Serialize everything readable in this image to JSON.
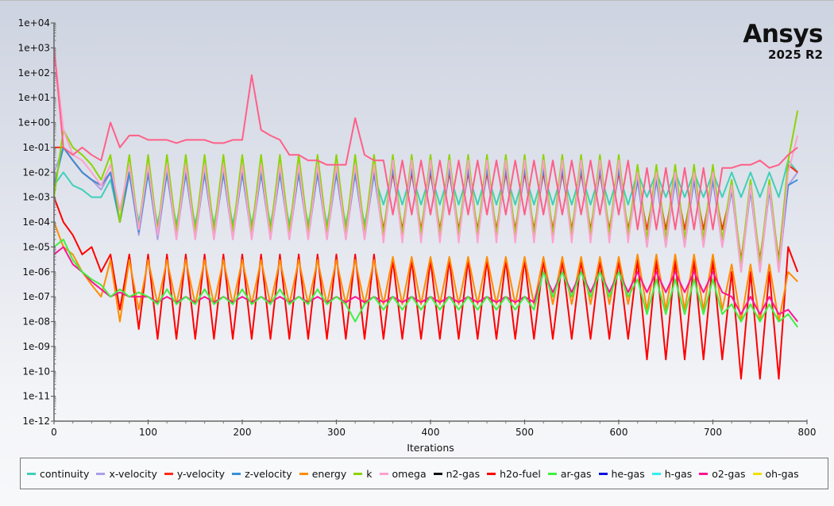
{
  "logo": {
    "name": "Ansys",
    "version": "2025 R2"
  },
  "chart_data": {
    "type": "line",
    "title": "",
    "xlabel": "Iterations",
    "ylabel": "",
    "xlim": [
      0,
      800
    ],
    "ylim": [
      1e-12,
      10000.0
    ],
    "yscale": "log",
    "grid": false,
    "legend_position": "bottom",
    "xticks": [
      "0",
      "100",
      "200",
      "300",
      "400",
      "500",
      "600",
      "700",
      "800"
    ],
    "yticks": [
      "1e+04",
      "1e+03",
      "1e+02",
      "1e+01",
      "1e+00",
      "1e-01",
      "1e-02",
      "1e-03",
      "1e-04",
      "1e-05",
      "1e-06",
      "1e-07",
      "1e-08",
      "1e-09",
      "1e-10",
      "1e-11",
      "1e-12"
    ],
    "legend": [
      {
        "name": "continuity",
        "color": "#3fd0b8"
      },
      {
        "name": "x-velocity",
        "color": "#aa9ee6"
      },
      {
        "name": "y-velocity",
        "color": "#ff2a1a"
      },
      {
        "name": "z-velocity",
        "color": "#3a8fd8"
      },
      {
        "name": "energy",
        "color": "#ff8c00"
      },
      {
        "name": "k",
        "color": "#8cd400"
      },
      {
        "name": "omega",
        "color": "#ffa0cc"
      },
      {
        "name": "n2-gas",
        "color": "#111111"
      },
      {
        "name": "h2o-fuel",
        "color": "#ff0000"
      },
      {
        "name": "ar-gas",
        "color": "#3ff03f"
      },
      {
        "name": "he-gas",
        "color": "#1010e0"
      },
      {
        "name": "h-gas",
        "color": "#30f0f0"
      },
      {
        "name": "o2-gas",
        "color": "#ff1493"
      },
      {
        "name": "oh-gas",
        "color": "#f0e000"
      }
    ],
    "x": [
      0,
      10,
      20,
      30,
      40,
      50,
      60,
      70,
      80,
      90,
      100,
      110,
      120,
      130,
      140,
      150,
      160,
      170,
      180,
      190,
      200,
      210,
      220,
      230,
      240,
      250,
      260,
      270,
      280,
      290,
      300,
      310,
      320,
      330,
      340,
      350,
      360,
      370,
      380,
      390,
      400,
      410,
      420,
      430,
      440,
      450,
      460,
      470,
      480,
      490,
      500,
      510,
      520,
      530,
      540,
      550,
      560,
      570,
      580,
      590,
      600,
      610,
      620,
      630,
      640,
      650,
      660,
      670,
      680,
      690,
      700,
      710,
      720,
      730,
      740,
      750,
      760,
      770,
      780,
      790
    ],
    "series": [
      {
        "name": "continuity",
        "color": "#3fd0b8",
        "values": [
          0.003,
          0.01,
          0.003,
          0.002,
          0.001,
          0.001,
          0.005,
          0.0001,
          0.008,
          0.0001,
          0.008,
          8e-05,
          0.008,
          8e-05,
          0.008,
          8e-05,
          0.008,
          8e-05,
          0.008,
          8e-05,
          0.008,
          8e-05,
          0.008,
          8e-05,
          0.008,
          8e-05,
          0.008,
          8e-05,
          0.008,
          8e-05,
          0.008,
          8e-05,
          0.008,
          8e-05,
          0.008,
          0.0005,
          0.01,
          0.0005,
          0.01,
          0.0005,
          0.01,
          0.0005,
          0.01,
          0.0005,
          0.01,
          0.0005,
          0.01,
          0.0005,
          0.01,
          0.0005,
          0.01,
          0.0005,
          0.01,
          0.0005,
          0.01,
          0.0005,
          0.01,
          0.0005,
          0.01,
          0.0005,
          0.01,
          0.0005,
          0.01,
          0.001,
          0.01,
          0.001,
          0.01,
          0.001,
          0.01,
          0.001,
          0.01,
          0.001,
          0.01,
          0.001,
          0.01,
          0.001,
          0.01,
          0.001,
          0.03,
          0.01
        ]
      },
      {
        "name": "x-velocity",
        "color": "#aa9ee6",
        "values": [
          0.01,
          0.1,
          0.03,
          0.01,
          0.005,
          0.002,
          0.01,
          0.0001,
          0.01,
          3e-05,
          0.01,
          2e-05,
          0.01,
          2e-05,
          0.01,
          2e-05,
          0.01,
          2e-05,
          0.01,
          2e-05,
          0.01,
          2e-05,
          0.01,
          2e-05,
          0.01,
          2e-05,
          0.01,
          2e-05,
          0.01,
          2e-05,
          0.01,
          2e-05,
          0.01,
          2e-05,
          0.01,
          2e-05,
          0.015,
          2e-05,
          0.015,
          2e-05,
          0.015,
          2e-05,
          0.015,
          2e-05,
          0.015,
          2e-05,
          0.015,
          2e-05,
          0.015,
          2e-05,
          0.015,
          2e-05,
          0.015,
          2e-05,
          0.015,
          2e-05,
          0.015,
          2e-05,
          0.015,
          2e-05,
          0.015,
          2e-05,
          0.005,
          1e-05,
          0.005,
          1e-05,
          0.005,
          1e-05,
          0.005,
          1e-05,
          0.005,
          1e-05,
          0.002,
          1e-06,
          0.002,
          1e-06,
          0.002,
          1e-06,
          0.003,
          0.01
        ]
      },
      {
        "name": "y-velocity",
        "color": "#ff2a1a",
        "values": [
          0.1,
          0.1,
          0.03,
          0.01,
          0.005,
          0.003,
          0.01,
          0.0001,
          0.01,
          5e-05,
          0.01,
          5e-05,
          0.01,
          5e-05,
          0.01,
          5e-05,
          0.01,
          5e-05,
          0.01,
          5e-05,
          0.01,
          5e-05,
          0.01,
          5e-05,
          0.01,
          5e-05,
          0.01,
          5e-05,
          0.01,
          5e-05,
          0.01,
          5e-05,
          0.01,
          5e-05,
          0.01,
          5e-05,
          0.01,
          5e-05,
          0.01,
          5e-05,
          0.01,
          5e-05,
          0.01,
          5e-05,
          0.01,
          5e-05,
          0.01,
          5e-05,
          0.01,
          5e-05,
          0.01,
          5e-05,
          0.01,
          5e-05,
          0.01,
          5e-05,
          0.01,
          5e-05,
          0.01,
          5e-05,
          0.01,
          5e-05,
          0.005,
          5e-05,
          0.005,
          5e-05,
          0.005,
          5e-05,
          0.005,
          5e-05,
          0.005,
          5e-05,
          0.002,
          3e-06,
          0.002,
          3e-06,
          0.002,
          3e-06,
          0.02,
          0.01
        ]
      },
      {
        "name": "z-velocity",
        "color": "#3a8fd8",
        "values": [
          0.003,
          0.1,
          0.03,
          0.01,
          0.005,
          0.003,
          0.01,
          0.0001,
          0.01,
          4e-05,
          0.01,
          3e-05,
          0.01,
          3e-05,
          0.01,
          3e-05,
          0.01,
          3e-05,
          0.01,
          3e-05,
          0.01,
          3e-05,
          0.01,
          3e-05,
          0.01,
          3e-05,
          0.01,
          3e-05,
          0.01,
          3e-05,
          0.01,
          3e-05,
          0.01,
          3e-05,
          0.01,
          3e-05,
          0.015,
          3e-05,
          0.015,
          3e-05,
          0.015,
          3e-05,
          0.015,
          3e-05,
          0.015,
          3e-05,
          0.015,
          3e-05,
          0.015,
          3e-05,
          0.015,
          3e-05,
          0.015,
          3e-05,
          0.015,
          3e-05,
          0.015,
          3e-05,
          0.015,
          3e-05,
          0.015,
          3e-05,
          0.005,
          2e-05,
          0.005,
          2e-05,
          0.005,
          2e-05,
          0.005,
          2e-05,
          0.005,
          2e-05,
          0.002,
          2e-06,
          0.002,
          2e-06,
          0.002,
          2e-06,
          0.003,
          0.005
        ]
      },
      {
        "name": "k",
        "color": "#8cd400",
        "values": [
          0.001,
          0.5,
          0.1,
          0.05,
          0.02,
          0.005,
          0.05,
          0.0001,
          0.05,
          5e-05,
          0.05,
          4e-05,
          0.05,
          4e-05,
          0.05,
          4e-05,
          0.05,
          4e-05,
          0.05,
          4e-05,
          0.05,
          4e-05,
          0.05,
          4e-05,
          0.05,
          4e-05,
          0.05,
          4e-05,
          0.05,
          4e-05,
          0.05,
          4e-05,
          0.05,
          4e-05,
          0.05,
          3e-05,
          0.05,
          3e-05,
          0.05,
          3e-05,
          0.05,
          3e-05,
          0.05,
          3e-05,
          0.05,
          3e-05,
          0.05,
          3e-05,
          0.05,
          3e-05,
          0.05,
          3e-05,
          0.05,
          3e-05,
          0.05,
          3e-05,
          0.05,
          3e-05,
          0.05,
          3e-05,
          0.05,
          3e-05,
          0.02,
          2e-05,
          0.02,
          2e-05,
          0.02,
          2e-05,
          0.02,
          2e-05,
          0.02,
          2e-05,
          0.005,
          2e-06,
          0.005,
          2e-06,
          0.005,
          2e-06,
          0.03,
          3.0
        ]
      },
      {
        "name": "omega",
        "color": "#ffa0cc",
        "values": [
          1000.0,
          0.5,
          0.05,
          0.03,
          0.01,
          0.003,
          0.02,
          0.0003,
          0.02,
          5e-05,
          0.02,
          3e-05,
          0.02,
          2e-05,
          0.02,
          2e-05,
          0.02,
          2e-05,
          0.02,
          2e-05,
          0.02,
          2e-05,
          0.02,
          2e-05,
          0.02,
          2e-05,
          0.02,
          2e-05,
          0.02,
          2e-05,
          0.02,
          2e-05,
          0.02,
          2e-05,
          0.02,
          1.5e-05,
          0.03,
          1.5e-05,
          0.03,
          1.5e-05,
          0.03,
          1.5e-05,
          0.03,
          1.5e-05,
          0.03,
          1.5e-05,
          0.03,
          1.5e-05,
          0.03,
          1.5e-05,
          0.03,
          1.5e-05,
          0.03,
          1.5e-05,
          0.03,
          1.5e-05,
          0.03,
          1.5e-05,
          0.03,
          1.5e-05,
          0.03,
          1.5e-05,
          0.01,
          1e-05,
          0.01,
          1e-05,
          0.01,
          1e-05,
          0.01,
          1e-05,
          0.01,
          1e-05,
          0.003,
          1e-06,
          0.003,
          1e-06,
          0.003,
          1e-06,
          0.01,
          0.3
        ]
      },
      {
        "name": "h2o-fuel",
        "color": "#ff0000",
        "values": [
          0.001,
          0.0001,
          3e-05,
          5e-06,
          1e-05,
          1e-06,
          5e-06,
          3e-08,
          5e-06,
          5e-09,
          5e-06,
          2e-09,
          5e-06,
          2e-09,
          5e-06,
          2e-09,
          5e-06,
          2e-09,
          5e-06,
          2e-09,
          5e-06,
          2e-09,
          5e-06,
          2e-09,
          5e-06,
          2e-09,
          5e-06,
          2e-09,
          5e-06,
          2e-09,
          5e-06,
          2e-09,
          5e-06,
          2e-09,
          5e-06,
          2e-09,
          3e-06,
          2e-09,
          3e-06,
          2e-09,
          3e-06,
          2e-09,
          3e-06,
          2e-09,
          3e-06,
          2e-09,
          3e-06,
          2e-09,
          3e-06,
          2e-09,
          3e-06,
          2e-09,
          3e-06,
          2e-09,
          3e-06,
          2e-09,
          3e-06,
          2e-09,
          3e-06,
          2e-09,
          3e-06,
          2e-09,
          3e-06,
          3e-10,
          3e-06,
          3e-10,
          3e-06,
          3e-10,
          3e-06,
          3e-10,
          3e-06,
          3e-10,
          1e-06,
          5e-11,
          1e-06,
          5e-11,
          1e-06,
          5e-11,
          1e-05,
          1e-06
        ]
      },
      {
        "name": "energy",
        "color": "#ff8c00",
        "values": [
          0.0001,
          1e-05,
          5e-06,
          1e-06,
          3e-07,
          1e-07,
          3e-06,
          1e-08,
          3e-06,
          3e-08,
          3e-06,
          5e-08,
          3e-06,
          5e-08,
          3e-06,
          5e-08,
          3e-06,
          5e-08,
          3e-06,
          5e-08,
          3e-06,
          5e-08,
          3e-06,
          5e-08,
          3e-06,
          5e-08,
          3e-06,
          5e-08,
          3e-06,
          5e-08,
          3e-06,
          5e-08,
          3e-06,
          5e-08,
          3e-06,
          5e-08,
          4e-06,
          5e-08,
          4e-06,
          5e-08,
          4e-06,
          5e-08,
          4e-06,
          5e-08,
          4e-06,
          5e-08,
          4e-06,
          5e-08,
          4e-06,
          5e-08,
          4e-06,
          5e-08,
          4e-06,
          5e-08,
          4e-06,
          5e-08,
          4e-06,
          5e-08,
          4e-06,
          5e-08,
          4e-06,
          5e-08,
          5e-06,
          3e-08,
          5e-06,
          3e-08,
          5e-06,
          3e-08,
          5e-06,
          3e-08,
          5e-06,
          3e-08,
          2e-06,
          1e-08,
          2e-06,
          1e-08,
          2e-06,
          1e-08,
          1e-06,
          4e-07
        ]
      },
      {
        "name": "o2-gas",
        "color": "#ff1493",
        "values": [
          5e-06,
          1e-05,
          2e-06,
          1e-06,
          4e-07,
          2e-07,
          1e-07,
          1.5e-07,
          1e-07,
          1e-07,
          1e-07,
          6e-08,
          1e-07,
          6e-08,
          1e-07,
          6e-08,
          1e-07,
          6e-08,
          1e-07,
          6e-08,
          1e-07,
          6e-08,
          1e-07,
          6e-08,
          1e-07,
          6e-08,
          1e-07,
          6e-08,
          1e-07,
          6e-08,
          1e-07,
          6e-08,
          1e-07,
          6e-08,
          1e-07,
          6e-08,
          1e-07,
          6e-08,
          1e-07,
          6e-08,
          1e-07,
          6e-08,
          1e-07,
          6e-08,
          1e-07,
          6e-08,
          1e-07,
          6e-08,
          1e-07,
          6e-08,
          1e-07,
          6e-08,
          1e-06,
          1.5e-07,
          1e-06,
          1.5e-07,
          1e-06,
          1.5e-07,
          1e-06,
          1.5e-07,
          1e-06,
          1.5e-07,
          1e-06,
          1.5e-07,
          1e-06,
          1.5e-07,
          1e-06,
          1.5e-07,
          1e-06,
          1.5e-07,
          1e-06,
          1.5e-07,
          1e-07,
          2e-08,
          1e-07,
          2e-08,
          1e-07,
          2e-08,
          3e-08,
          1e-08
        ]
      },
      {
        "name": "ar-gas",
        "color": "#3ff03f",
        "values": [
          1e-05,
          2e-05,
          3e-06,
          1e-06,
          5e-07,
          3e-07,
          1e-07,
          2e-07,
          1e-07,
          1.5e-07,
          1e-07,
          5e-08,
          2e-07,
          5e-08,
          1e-07,
          5e-08,
          2e-07,
          5e-08,
          1e-07,
          5e-08,
          2e-07,
          5e-08,
          1e-07,
          5e-08,
          2e-07,
          5e-08,
          1e-07,
          5e-08,
          2e-07,
          5e-08,
          1e-07,
          5e-08,
          1e-08,
          5e-08,
          1e-07,
          3e-08,
          1e-07,
          3e-08,
          1e-07,
          3e-08,
          1e-07,
          3e-08,
          1e-07,
          3e-08,
          1e-07,
          3e-08,
          1e-07,
          3e-08,
          1e-07,
          3e-08,
          1e-07,
          3e-08,
          1e-06,
          1e-07,
          1e-06,
          1e-07,
          1e-06,
          1e-07,
          1e-06,
          1e-07,
          1e-06,
          1e-07,
          5e-07,
          2e-08,
          5e-07,
          2e-08,
          5e-07,
          2e-08,
          5e-07,
          2e-08,
          5e-07,
          2e-08,
          5e-08,
          1e-08,
          5e-08,
          1e-08,
          5e-08,
          1e-08,
          2e-08,
          6e-09
        ]
      },
      {
        "color": "#ff6088",
        "values": [
          1000.0,
          0.1,
          0.05,
          0.1,
          0.05,
          0.03,
          1.0,
          0.1,
          0.3,
          0.3,
          0.2,
          0.2,
          0.2,
          0.15,
          0.2,
          0.2,
          0.2,
          0.15,
          0.15,
          0.2,
          0.2,
          80.0,
          0.5,
          0.3,
          0.2,
          0.05,
          0.05,
          0.03,
          0.03,
          0.02,
          0.02,
          0.02,
          1.5,
          0.05,
          0.03,
          0.03,
          0.0002,
          0.03,
          0.0002,
          0.03,
          0.0002,
          0.03,
          0.0002,
          0.03,
          0.0002,
          0.03,
          0.0002,
          0.03,
          0.0002,
          0.03,
          0.0002,
          0.03,
          0.0002,
          0.03,
          0.0002,
          0.03,
          0.0002,
          0.03,
          0.0002,
          0.03,
          0.0002,
          0.03,
          5e-05,
          0.015,
          5e-05,
          0.015,
          5e-05,
          0.015,
          5e-05,
          0.015,
          5e-05,
          0.015,
          0.015,
          0.02,
          0.02,
          0.03,
          0.015,
          0.02,
          0.05,
          0.1
        ]
      }
    ]
  }
}
